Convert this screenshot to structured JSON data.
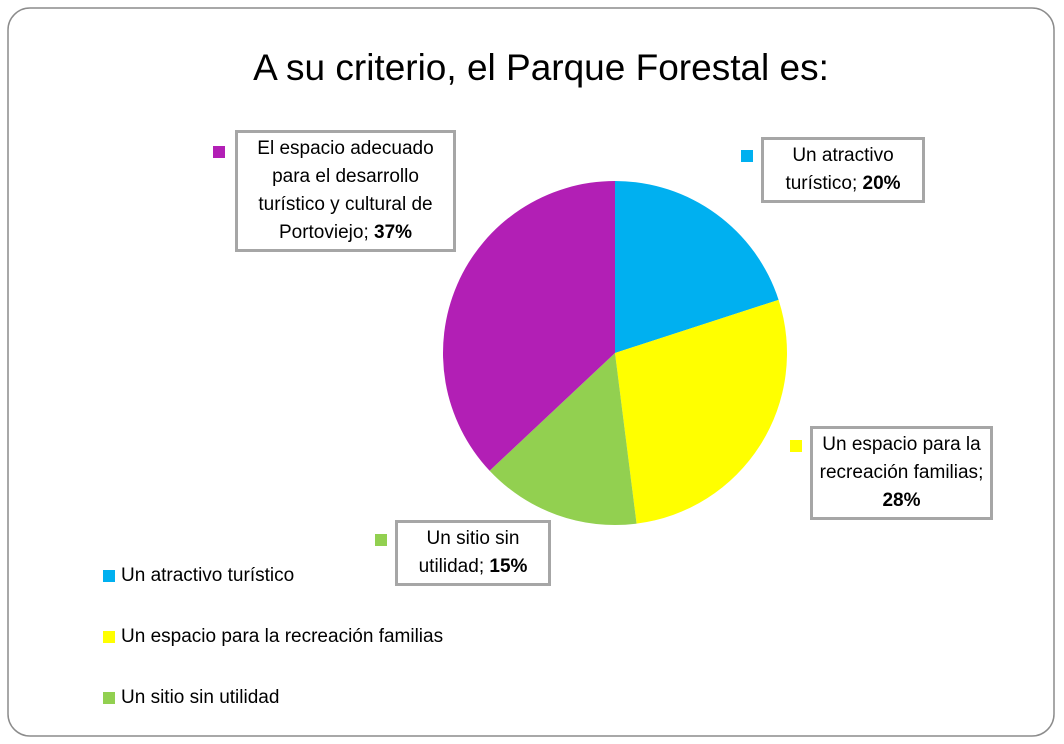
{
  "chart_data": {
    "type": "pie",
    "title": "A su criterio, el Parque Forestal es:",
    "categories": [
      "Un atractivo turístico",
      "Un espacio para la recreación familias",
      "Un sitio sin utilidad",
      "El espacio adecuado para el desarrollo turístico y cultural de Portoviejo"
    ],
    "values": [
      20,
      28,
      15,
      37
    ],
    "value_labels": [
      "20%",
      "28%",
      "15%",
      "37%"
    ],
    "label_separator": "; ",
    "colors": [
      "#00b0f0",
      "#ffff00",
      "#92d050",
      "#b21fb5"
    ],
    "legend": "bottom-left"
  }
}
